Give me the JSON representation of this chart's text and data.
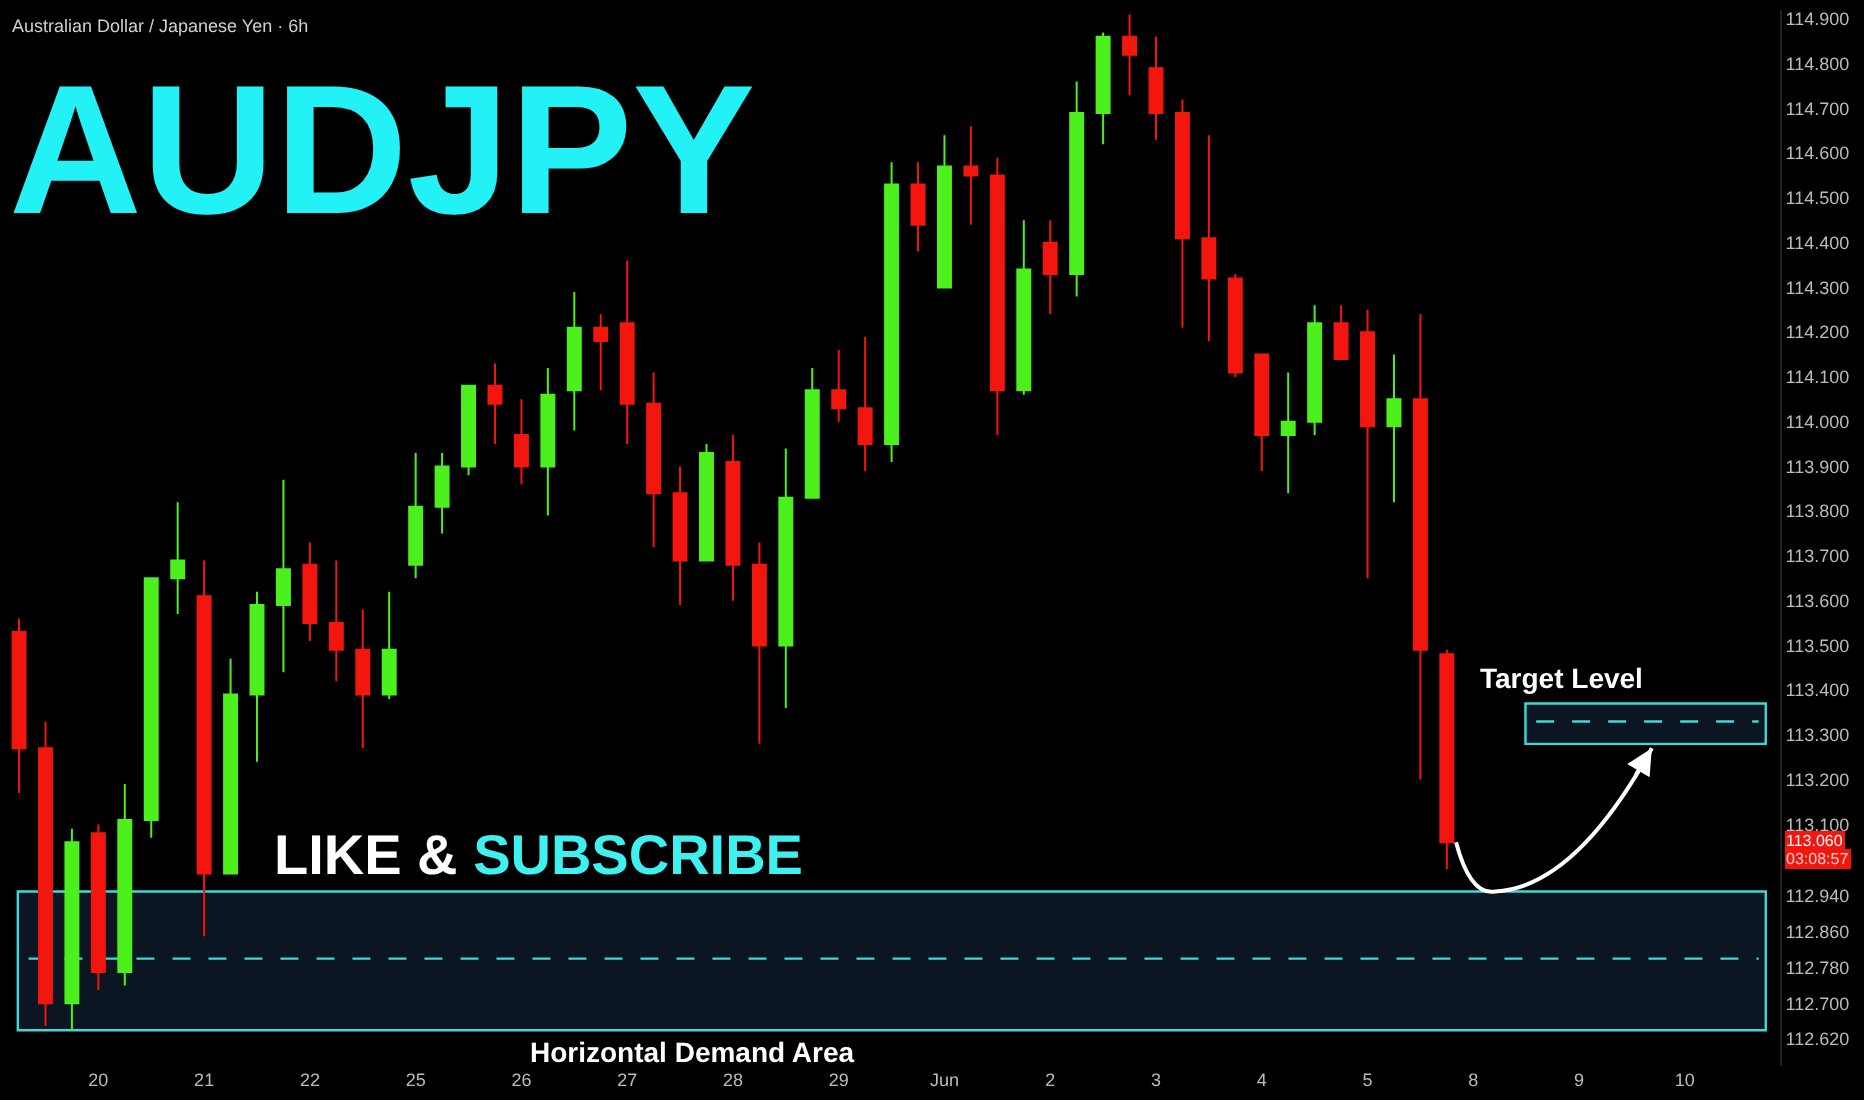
{
  "chart_data": {
    "type": "candlestick",
    "title": "AUDJPY",
    "subtitle": "Australian Dollar / Japanese Yen · 6h",
    "colors": [
      "#f2160f",
      "#f2160f",
      "#4cf01c",
      "#f2160f",
      "#4cf01c",
      "#4cf01c",
      "#4cf01c",
      "#f2160f",
      "#4cf01c",
      "#4cf01c",
      "#4cf01c",
      "#f2160f",
      "#f2160f",
      "#f2160f",
      "#4cf01c",
      "#4cf01c",
      "#4cf01c",
      "#4cf01c",
      "#f2160f",
      "#f2160f",
      "#4cf01c",
      "#4cf01c",
      "#f2160f",
      "#f2160f",
      "#f2160f",
      "#f2160f",
      "#4cf01c",
      "#f2160f",
      "#f2160f",
      "#4cf01c",
      "#4cf01c",
      "#f2160f",
      "#f2160f",
      "#4cf01c",
      "#f2160f",
      "#4cf01c",
      "#f2160f",
      "#f2160f",
      "#4cf01c",
      "#f2160f",
      "#4cf01c",
      "#4cf01c",
      "#f2160f",
      "#f2160f",
      "#f2160f",
      "#f2160f",
      "#f2160f",
      "#f2160f",
      "#4cf01c",
      "#4cf01c",
      "#f2160f",
      "#f2160f",
      "#4cf01c",
      "#f2160f",
      "#f2160f",
      null,
      null,
      null,
      null,
      null,
      null,
      null,
      null,
      null,
      null,
      null,
      null
    ],
    "categories": [
      null,
      null,
      null,
      "20",
      null,
      null,
      null,
      "21",
      null,
      null,
      null,
      "22",
      null,
      null,
      null,
      "25",
      null,
      null,
      null,
      "26",
      null,
      null,
      null,
      "27",
      null,
      null,
      null,
      "28",
      null,
      null,
      null,
      "29",
      null,
      null,
      null,
      "Jun",
      null,
      null,
      null,
      "2",
      null,
      null,
      null,
      "3",
      null,
      null,
      null,
      "4",
      null,
      null,
      null,
      "5",
      null,
      null,
      null,
      "8",
      null,
      null,
      null,
      "9",
      null,
      null,
      null,
      "10",
      null,
      null,
      null
    ],
    "ohlc": [
      [
        113.53,
        113.56,
        113.17,
        113.27
      ],
      [
        113.27,
        113.33,
        112.65,
        112.7
      ],
      [
        112.7,
        113.09,
        112.64,
        113.06
      ],
      [
        113.08,
        113.1,
        112.73,
        112.77
      ],
      [
        112.77,
        113.19,
        112.74,
        113.11
      ],
      [
        113.11,
        113.65,
        113.07,
        113.65
      ],
      [
        113.65,
        113.82,
        113.57,
        113.69
      ],
      [
        113.61,
        113.69,
        112.85,
        112.99
      ],
      [
        112.99,
        113.47,
        112.99,
        113.39
      ],
      [
        113.39,
        113.62,
        113.24,
        113.59
      ],
      [
        113.59,
        113.87,
        113.44,
        113.67
      ],
      [
        113.68,
        113.73,
        113.51,
        113.55
      ],
      [
        113.55,
        113.69,
        113.42,
        113.49
      ],
      [
        113.49,
        113.58,
        113.27,
        113.39
      ],
      [
        113.39,
        113.62,
        113.38,
        113.49
      ],
      [
        113.68,
        113.93,
        113.65,
        113.81
      ],
      [
        113.81,
        113.93,
        113.75,
        113.9
      ],
      [
        113.9,
        114.08,
        113.88,
        114.08
      ],
      [
        114.08,
        114.13,
        113.95,
        114.04
      ],
      [
        113.97,
        114.05,
        113.86,
        113.9
      ],
      [
        113.9,
        114.12,
        113.79,
        114.06
      ],
      [
        114.07,
        114.29,
        113.98,
        114.21
      ],
      [
        114.21,
        114.24,
        114.07,
        114.18
      ],
      [
        114.22,
        114.36,
        113.95,
        114.04
      ],
      [
        114.04,
        114.11,
        113.72,
        113.84
      ],
      [
        113.84,
        113.9,
        113.59,
        113.69
      ],
      [
        113.69,
        113.95,
        113.69,
        113.93
      ],
      [
        113.91,
        113.97,
        113.6,
        113.68
      ],
      [
        113.68,
        113.73,
        113.28,
        113.5
      ],
      [
        113.5,
        113.94,
        113.36,
        113.83
      ],
      [
        113.83,
        114.12,
        113.83,
        114.07
      ],
      [
        114.07,
        114.16,
        114.0,
        114.03
      ],
      [
        114.03,
        114.19,
        113.89,
        113.95
      ],
      [
        113.95,
        114.58,
        113.91,
        114.53
      ],
      [
        114.53,
        114.58,
        114.38,
        114.44
      ],
      [
        114.3,
        114.64,
        114.3,
        114.57
      ],
      [
        114.57,
        114.66,
        114.44,
        114.55
      ],
      [
        114.55,
        114.59,
        113.97,
        114.07
      ],
      [
        114.07,
        114.45,
        114.06,
        114.34
      ],
      [
        114.4,
        114.45,
        114.24,
        114.33
      ],
      [
        114.33,
        114.76,
        114.28,
        114.69
      ],
      [
        114.69,
        114.87,
        114.62,
        114.86
      ],
      [
        114.86,
        114.91,
        114.73,
        114.82
      ],
      [
        114.79,
        114.86,
        114.63,
        114.69
      ],
      [
        114.69,
        114.72,
        114.21,
        114.41
      ],
      [
        114.41,
        114.64,
        114.18,
        114.32
      ],
      [
        114.32,
        114.33,
        114.1,
        114.11
      ],
      [
        114.15,
        114.15,
        113.89,
        113.97
      ],
      [
        113.97,
        114.11,
        113.84,
        114.0
      ],
      [
        114.0,
        114.26,
        113.97,
        114.22
      ],
      [
        114.22,
        114.26,
        114.14,
        114.14
      ],
      [
        114.2,
        114.25,
        113.65,
        113.99
      ],
      [
        113.99,
        114.15,
        113.82,
        114.05
      ],
      [
        114.05,
        114.24,
        113.2,
        113.49
      ],
      [
        113.48,
        113.49,
        113.0,
        113.06
      ],
      null,
      null,
      null,
      null,
      null,
      null,
      null,
      null,
      null,
      null,
      null,
      null
    ],
    "ylim": [
      112.56,
      114.92
    ],
    "yticks": [
      {
        "value": 114.9,
        "label": "114.900"
      },
      {
        "value": 114.8,
        "label": "114.800"
      },
      {
        "value": 114.7,
        "label": "114.700"
      },
      {
        "value": 114.6,
        "label": "114.600"
      },
      {
        "value": 114.5,
        "label": "114.500"
      },
      {
        "value": 114.4,
        "label": "114.400"
      },
      {
        "value": 114.3,
        "label": "114.300"
      },
      {
        "value": 114.2,
        "label": "114.200"
      },
      {
        "value": 114.1,
        "label": "114.100"
      },
      {
        "value": 114.0,
        "label": "114.000"
      },
      {
        "value": 113.9,
        "label": "113.900"
      },
      {
        "value": 113.8,
        "label": "113.800"
      },
      {
        "value": 113.7,
        "label": "113.700"
      },
      {
        "value": 113.6,
        "label": "113.600"
      },
      {
        "value": 113.5,
        "label": "113.500"
      },
      {
        "value": 113.4,
        "label": "113.400"
      },
      {
        "value": 113.3,
        "label": "113.300"
      },
      {
        "value": 113.2,
        "label": "113.200"
      },
      {
        "value": 113.1,
        "label": "113.100"
      },
      {
        "value": 112.94,
        "label": "112.940"
      },
      {
        "value": 112.86,
        "label": "112.860"
      },
      {
        "value": 112.78,
        "label": "112.780"
      },
      {
        "value": 112.7,
        "label": "112.700"
      },
      {
        "value": 112.62,
        "label": "112.620"
      }
    ],
    "bands": [
      {
        "axis": "y",
        "from": 112.64,
        "to": 112.95,
        "label": "Horizontal Demand Area",
        "color": "#3fd8d8"
      },
      {
        "axis": "y",
        "from": 113.28,
        "to": 113.37,
        "label": "Target Level",
        "color": "#3fd8d8"
      }
    ],
    "ref_lines": [
      {
        "axis": "y",
        "value": 112.8,
        "color": "#3fd8d8",
        "line_style": "dashed"
      },
      {
        "axis": "y",
        "value": 113.33,
        "color": "#3fd8d8",
        "line_style": "dashed"
      }
    ],
    "annotations": [
      "LIKE & SUBSCRIBE",
      "113.060",
      "03:08:57"
    ]
  }
}
